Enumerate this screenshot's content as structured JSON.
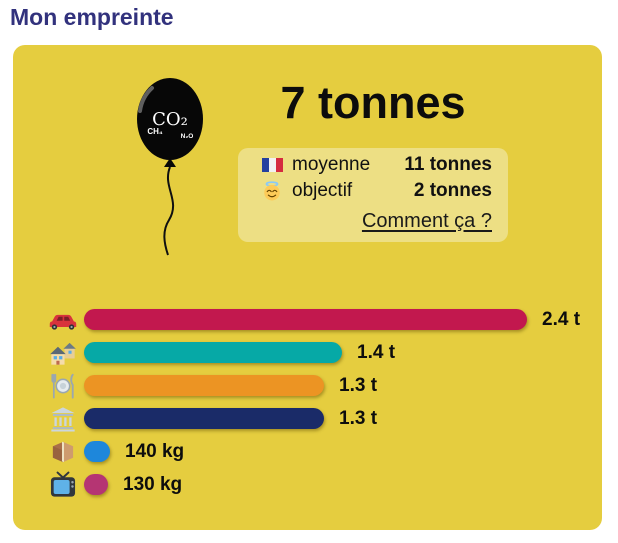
{
  "page": {
    "title": "Mon empreinte"
  },
  "balloon": {
    "gas_main": "CO₂",
    "gas_2": "CH₄",
    "gas_3": "N₂O"
  },
  "summary": {
    "total": "7 tonnes"
  },
  "comparison": {
    "rows": [
      {
        "icon": "french-flag-icon",
        "label": "moyenne",
        "value": "11 tonnes"
      },
      {
        "icon": "halo-face-icon",
        "label": "objectif",
        "value": "2 tonnes"
      }
    ],
    "link_label": "Comment ça ?"
  },
  "chart_data": {
    "type": "bar",
    "orientation": "horizontal",
    "categories": [
      "car",
      "houses",
      "dining",
      "bank-building",
      "package",
      "tv"
    ],
    "values_kg": [
      2400,
      1400,
      1300,
      1300,
      140,
      130
    ],
    "labels": [
      "2.4 t",
      "1.4 t",
      "1.3 t",
      "1.3 t",
      "140 kg",
      "130 kg"
    ],
    "colors": [
      "#C2184E",
      "#06A9A6",
      "#EC9423",
      "#1A2B68",
      "#1E87DB",
      "#B53573"
    ],
    "xmax_kg": 2400,
    "grid": false,
    "legend": false
  },
  "theme": {
    "card_bg": "#E5CD3F",
    "box_bg": "#EDDF84",
    "title_color": "#32327D"
  }
}
